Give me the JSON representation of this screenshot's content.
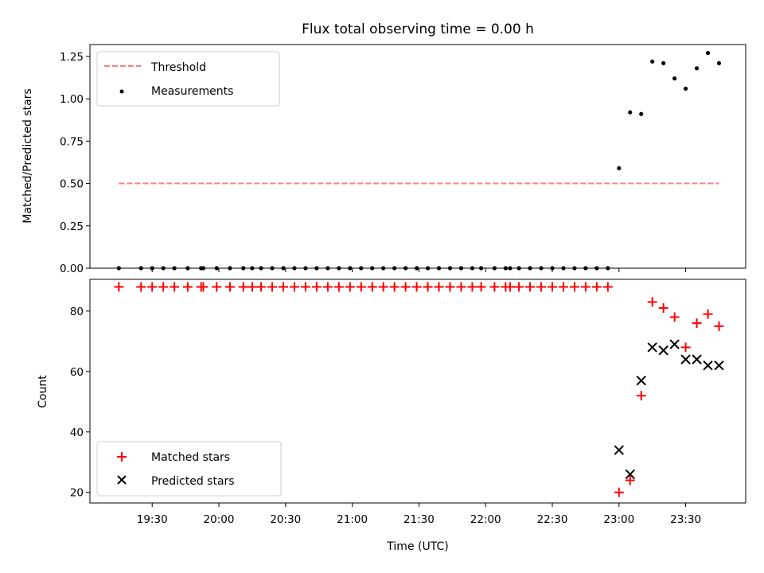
{
  "chart_data": [
    {
      "type": "line",
      "title": "Flux total observing time = 0.00 h",
      "xlabel": "",
      "ylabel": "Matched/Predicted stars",
      "ylim": [
        0,
        1.32
      ],
      "yticks": [
        0,
        0.25,
        0.5,
        0.75,
        1.0,
        1.25
      ],
      "ytick_labels": [
        "0.00",
        "0.25",
        "0.50",
        "0.75",
        "1.00",
        "1.25"
      ],
      "xlim": [
        "19:02",
        "23:57"
      ],
      "xticks": [
        "19:30",
        "20:00",
        "20:30",
        "21:00",
        "21:30",
        "22:00",
        "22:30",
        "23:00",
        "23:30"
      ],
      "xtick_labels_visible": false,
      "legend": "top-left",
      "series": [
        {
          "name": "Threshold",
          "kind": "line",
          "style": "dashed",
          "color": "#ff7f7f",
          "x": [
            "19:15",
            "23:45"
          ],
          "y": [
            0.5,
            0.5
          ]
        },
        {
          "name": "Measurements",
          "kind": "scatter",
          "marker": "dot",
          "color": "#000000",
          "x": [
            "19:15",
            "19:25",
            "19:30",
            "19:35",
            "19:40",
            "19:46",
            "19:52",
            "19:53",
            "19:59",
            "20:05",
            "20:11",
            "20:15",
            "20:19",
            "20:24",
            "20:29",
            "20:34",
            "20:39",
            "20:44",
            "20:49",
            "20:54",
            "20:59",
            "21:04",
            "21:09",
            "21:14",
            "21:19",
            "21:24",
            "21:29",
            "21:34",
            "21:39",
            "21:44",
            "21:49",
            "21:54",
            "21:58",
            "22:04",
            "22:09",
            "22:11",
            "22:15",
            "22:20",
            "22:25",
            "22:30",
            "22:35",
            "22:40",
            "22:45",
            "22:50",
            "22:55",
            "23:00",
            "23:05",
            "23:10",
            "23:15",
            "23:20",
            "23:25",
            "23:30",
            "23:35",
            "23:40",
            "23:45"
          ],
          "y": [
            0,
            0,
            0,
            0,
            0,
            0,
            0,
            0,
            0,
            0,
            0,
            0,
            0,
            0,
            0,
            0,
            0,
            0,
            0,
            0,
            0,
            0,
            0,
            0,
            0,
            0,
            0,
            0,
            0,
            0,
            0,
            0,
            0,
            0,
            0,
            0,
            0,
            0,
            0,
            0,
            0,
            0,
            0,
            0,
            0,
            0.59,
            0.92,
            0.91,
            1.22,
            1.21,
            1.12,
            1.06,
            1.18,
            1.27,
            1.21
          ]
        }
      ]
    },
    {
      "type": "scatter",
      "title": "",
      "xlabel": "Time (UTC)",
      "ylabel": "Count",
      "ylim": [
        16.5,
        90.5
      ],
      "yticks": [
        20,
        40,
        60,
        80
      ],
      "ytick_labels": [
        "20",
        "40",
        "60",
        "80"
      ],
      "xlim": [
        "19:02",
        "23:57"
      ],
      "xticks": [
        "19:30",
        "20:00",
        "20:30",
        "21:00",
        "21:30",
        "22:00",
        "22:30",
        "23:00",
        "23:30"
      ],
      "xtick_labels": [
        "19:30",
        "20:00",
        "20:30",
        "21:00",
        "21:30",
        "22:00",
        "22:30",
        "23:00",
        "23:30"
      ],
      "legend": "bottom-left",
      "series": [
        {
          "name": "Matched stars",
          "marker": "plus",
          "color": "#ff0000",
          "x": [
            "19:15",
            "19:25",
            "19:30",
            "19:35",
            "19:40",
            "19:46",
            "19:52",
            "19:53",
            "19:59",
            "20:05",
            "20:11",
            "20:15",
            "20:19",
            "20:24",
            "20:29",
            "20:34",
            "20:39",
            "20:44",
            "20:49",
            "20:54",
            "20:59",
            "21:04",
            "21:09",
            "21:14",
            "21:19",
            "21:24",
            "21:29",
            "21:34",
            "21:39",
            "21:44",
            "21:49",
            "21:54",
            "21:58",
            "22:04",
            "22:09",
            "22:11",
            "22:15",
            "22:20",
            "22:25",
            "22:30",
            "22:35",
            "22:40",
            "22:45",
            "22:50",
            "22:55",
            "23:00",
            "23:05",
            "23:10",
            "23:15",
            "23:20",
            "23:25",
            "23:30",
            "23:35",
            "23:40",
            "23:45"
          ],
          "y": [
            88,
            88,
            88,
            88,
            88,
            88,
            88,
            88,
            88,
            88,
            88,
            88,
            88,
            88,
            88,
            88,
            88,
            88,
            88,
            88,
            88,
            88,
            88,
            88,
            88,
            88,
            88,
            88,
            88,
            88,
            88,
            88,
            88,
            88,
            88,
            88,
            88,
            88,
            88,
            88,
            88,
            88,
            88,
            88,
            88,
            20,
            24,
            52,
            83,
            81,
            78,
            68,
            76,
            79,
            75
          ]
        },
        {
          "name": "Predicted stars",
          "marker": "x",
          "color": "#000000",
          "x": [
            "23:00",
            "23:05",
            "23:10",
            "23:15",
            "23:20",
            "23:25",
            "23:30",
            "23:35",
            "23:40",
            "23:45"
          ],
          "y": [
            34,
            26,
            57,
            68,
            67,
            69,
            64,
            64,
            62,
            62
          ]
        }
      ]
    }
  ]
}
